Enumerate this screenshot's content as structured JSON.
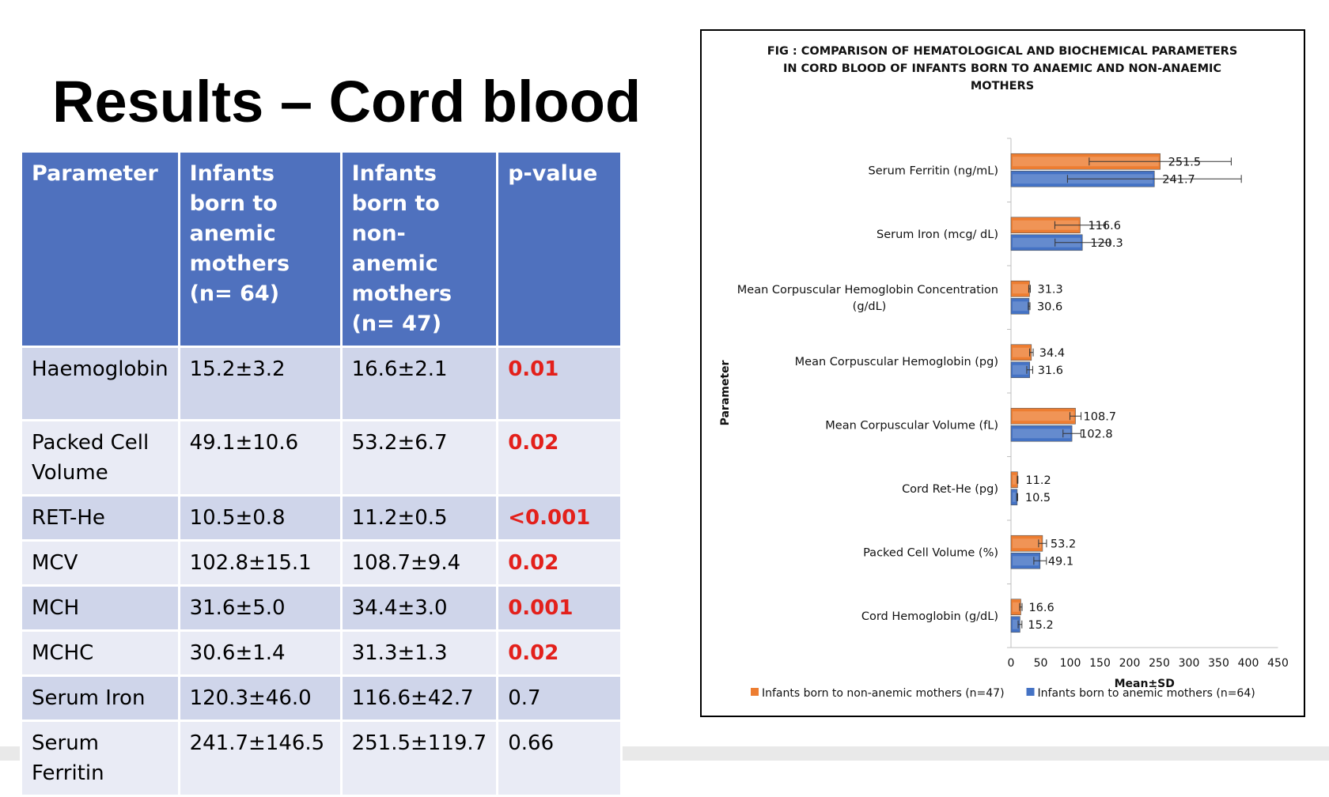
{
  "slide": {
    "title": "Results – Cord blood"
  },
  "table": {
    "headers": [
      "Parameter",
      "Infants born to anemic mothers  (n= 64)",
      "Infants born to non-anemic mothers (n= 47)",
      "p-value"
    ],
    "rows": [
      {
        "parameter": "Haemoglobin",
        "anemic": " 15.2±3.2",
        "non_anemic": "16.6±2.1",
        "p_value": "0.01",
        "significant": true
      },
      {
        "parameter": "Packed Cell Volume",
        "anemic": "49.1±10.6",
        "non_anemic": "53.2±6.7",
        "p_value": "0.02",
        "significant": true
      },
      {
        "parameter": "RET-He",
        "anemic": "10.5±0.8",
        "non_anemic": "11.2±0.5",
        "p_value": "<0.001",
        "significant": true
      },
      {
        "parameter": "MCV",
        "anemic": "102.8±15.1",
        "non_anemic": "108.7±9.4",
        "p_value": "0.02",
        "significant": true
      },
      {
        "parameter": "MCH",
        "anemic": "31.6±5.0",
        "non_anemic": "34.4±3.0",
        "p_value": "0.001",
        "significant": true
      },
      {
        "parameter": "MCHC",
        "anemic": "30.6±1.4",
        "non_anemic": "31.3±1.3",
        "p_value": "0.02",
        "significant": true
      },
      {
        "parameter": "Serum Iron",
        "anemic": "120.3±46.0",
        "non_anemic": "116.6±42.7",
        "p_value": "0.7",
        "significant": false
      },
      {
        "parameter": "Serum Ferritin",
        "anemic": "241.7±146.5",
        "non_anemic": "251.5±119.7",
        "p_value": "0.66",
        "significant": false
      }
    ]
  },
  "colors": {
    "header_bg": "#4f71be",
    "row_dark": "#cfd5ea",
    "row_light": "#e9ebf5",
    "significant": "#e3201b",
    "non_anemic_series": "#ed7d31",
    "anemic_series": "#4472c4"
  },
  "chart_data": {
    "type": "bar",
    "orientation": "horizontal",
    "title_lines": [
      "FIG : COMPARISON OF HEMATOLOGICAL AND BIOCHEMICAL PARAMETERS",
      "IN CORD BLOOD OF INFANTS BORN TO ANAEMIC AND NON-ANAEMIC",
      "MOTHERS"
    ],
    "ylabel": "Parameter",
    "xlabel": "Mean±SD",
    "xlim": [
      0,
      450
    ],
    "xticks": [
      "0",
      "50",
      "100",
      "150",
      "200",
      "250",
      "300",
      "350",
      "400",
      "450"
    ],
    "grid": false,
    "legend_position": "bottom",
    "categories": [
      {
        "label": [
          "Serum Ferritin (ng/mL)"
        ]
      },
      {
        "label": [
          "Serum Iron (mcg/ dL)"
        ]
      },
      {
        "label": [
          "Mean Corpuscular Hemoglobin Concentration",
          "(g/dL)"
        ]
      },
      {
        "label": [
          "Mean Corpuscular Hemoglobin (pg)"
        ]
      },
      {
        "label": [
          "Mean Corpuscular Volume (fL)"
        ]
      },
      {
        "label": [
          "Cord Ret-He (pg)"
        ]
      },
      {
        "label": [
          "Packed Cell Volume (%)"
        ]
      },
      {
        "label": [
          "Cord Hemoglobin (g/dL)"
        ]
      }
    ],
    "series": [
      {
        "name": "Infants born to non-anemic mothers (n=47)",
        "color": "#ed7d31",
        "values": [
          251.5,
          116.6,
          31.3,
          34.4,
          108.7,
          11.2,
          53.2,
          16.6
        ],
        "errors": [
          119.7,
          42.7,
          1.3,
          3.0,
          9.4,
          0.5,
          6.7,
          2.1
        ],
        "value_labels": [
          "251.5",
          "116.6",
          "31.3",
          "34.4",
          "108.7",
          "11.2",
          "53.2",
          "16.6"
        ]
      },
      {
        "name": "Infants born to anemic mothers (n=64)",
        "color": "#4472c4",
        "values": [
          241.7,
          120.3,
          30.6,
          31.6,
          102.8,
          10.5,
          49.1,
          15.2
        ],
        "errors": [
          146.5,
          46.0,
          1.4,
          5.0,
          15.1,
          0.8,
          10.6,
          3.2
        ],
        "value_labels": [
          "241.7",
          "120.3",
          "30.6",
          "31.6",
          "102.8",
          "10.5",
          "49.1",
          "15.2"
        ]
      }
    ]
  }
}
